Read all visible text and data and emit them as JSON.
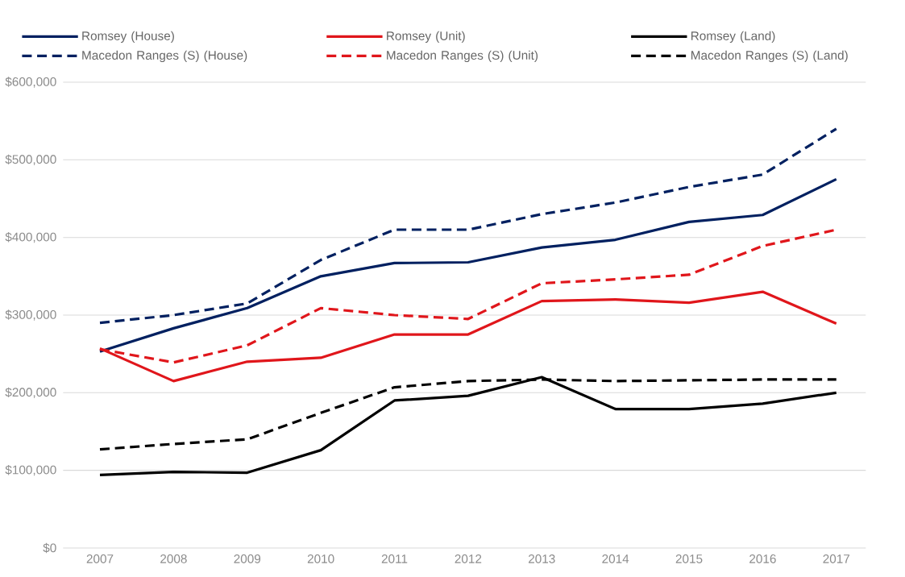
{
  "chart_data": {
    "type": "line",
    "categories": [
      "2007",
      "2008",
      "2009",
      "2010",
      "2011",
      "2012",
      "2013",
      "2014",
      "2015",
      "2016",
      "2017"
    ],
    "series": [
      {
        "name": "Romsey (House)",
        "color": "#002060",
        "line_style": "solid",
        "values": [
          253000,
          283000,
          309000,
          350000,
          367000,
          368000,
          387000,
          397000,
          420000,
          429000,
          475000
        ]
      },
      {
        "name": "Romsey (Unit)",
        "color": "#e0161b",
        "line_style": "solid",
        "values": [
          257000,
          215000,
          240000,
          245000,
          275000,
          275000,
          318000,
          320000,
          316000,
          330000,
          289000
        ]
      },
      {
        "name": "Romsey (Land)",
        "color": "#000000",
        "line_style": "solid",
        "values": [
          94000,
          98000,
          97000,
          126000,
          190000,
          196000,
          220000,
          179000,
          179000,
          186000,
          200000
        ]
      },
      {
        "name": "Macedon Ranges (S) (House)",
        "color": "#002060",
        "line_style": "dashed",
        "values": [
          290000,
          300000,
          315000,
          371000,
          410000,
          410000,
          430000,
          445000,
          465000,
          481000,
          540000
        ]
      },
      {
        "name": "Macedon Ranges (S) (Unit)",
        "color": "#e0161b",
        "line_style": "dashed",
        "values": [
          256000,
          239000,
          261000,
          309000,
          300000,
          295000,
          341000,
          346000,
          352000,
          389000,
          410000
        ]
      },
      {
        "name": "Macedon Ranges (S) (Land)",
        "color": "#000000",
        "line_style": "dashed",
        "values": [
          127000,
          134000,
          140000,
          174000,
          207000,
          215000,
          217000,
          215000,
          216000,
          217000,
          217000
        ]
      }
    ],
    "ylim": [
      0,
      600000
    ],
    "yticks": [
      {
        "value": 0,
        "label": "$0"
      },
      {
        "value": 100000,
        "label": "$100,000"
      },
      {
        "value": 200000,
        "label": "$200,000"
      },
      {
        "value": 300000,
        "label": "$300,000"
      },
      {
        "value": 400000,
        "label": "$400,000"
      },
      {
        "value": 500000,
        "label": "$500,000"
      },
      {
        "value": 600000,
        "label": "$600,000"
      }
    ],
    "grid": "y",
    "legend": "top",
    "marker": "none"
  }
}
